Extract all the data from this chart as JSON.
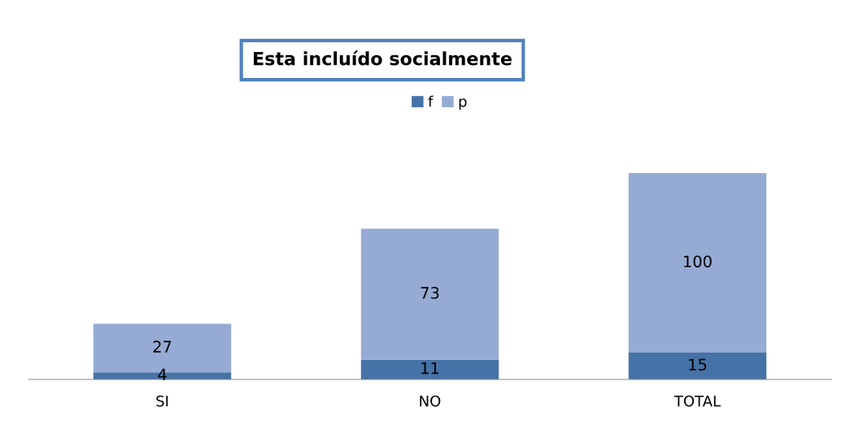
{
  "chart_data": {
    "type": "bar",
    "title": "Esta incluído socialmente",
    "categories": [
      "SI",
      "NO",
      "TOTAL"
    ],
    "stacked": true,
    "series": [
      {
        "name": "f",
        "color": "#4572a7",
        "values": [
          4,
          11,
          15
        ]
      },
      {
        "name": "p",
        "color": "#96abd3",
        "values": [
          27,
          73,
          100
        ]
      }
    ],
    "data_labels": true,
    "legend": "top",
    "grid": false
  }
}
